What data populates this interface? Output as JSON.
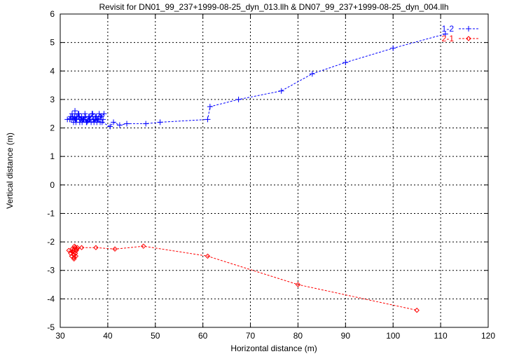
{
  "chart_data": {
    "type": "line",
    "title": "Revisit for DN01_99_237+1999-08-25_dyn_013.llh & DN07_99_237+1999-08-25_dyn_004.llh",
    "xlabel": "Horizontal distance (m)",
    "ylabel": "Vertical distance (m)",
    "xlim": [
      30,
      120
    ],
    "ylim": [
      -5,
      6
    ],
    "xticks": [
      30,
      40,
      50,
      60,
      70,
      80,
      90,
      100,
      110,
      120
    ],
    "yticks": [
      -5,
      -4,
      -3,
      -2,
      -1,
      0,
      1,
      2,
      3,
      4,
      5,
      6
    ],
    "grid": true,
    "legend_position": "top-right",
    "series": [
      {
        "name": "1-2",
        "color": "#0000ff",
        "marker": "plus",
        "x": [
          31.5,
          32.2,
          32.8,
          33.1,
          33.4,
          33.8,
          34.1,
          34.5,
          34.9,
          35.2,
          35.6,
          36.0,
          36.3,
          36.7,
          37.1,
          37.4,
          37.8,
          38.2,
          38.6,
          39.0,
          38.4,
          37.6,
          36.8,
          36.1,
          35.3,
          34.6,
          33.9,
          33.2,
          32.6,
          32.0,
          32.5,
          33.3,
          34.0,
          34.8,
          35.5,
          36.2,
          37.0,
          37.7,
          38.5,
          39.2,
          38.0,
          36.5,
          35.0,
          33.5,
          32.3,
          33.0,
          34.3,
          35.8,
          37.3,
          38.8,
          40.5,
          41.2,
          42.5,
          44.0,
          48.0,
          51.0,
          61.0,
          61.5,
          67.5,
          76.5,
          83.0,
          90.0,
          100.0,
          111.0
        ],
        "y": [
          2.3,
          2.4,
          2.2,
          2.6,
          2.3,
          2.5,
          2.2,
          2.4,
          2.3,
          2.5,
          2.2,
          2.4,
          2.3,
          2.5,
          2.2,
          2.4,
          2.3,
          2.5,
          2.4,
          2.3,
          2.2,
          2.4,
          2.5,
          2.3,
          2.4,
          2.2,
          2.5,
          2.3,
          2.4,
          2.3,
          2.5,
          2.2,
          2.4,
          2.3,
          2.2,
          2.4,
          2.3,
          2.2,
          2.4,
          2.5,
          2.3,
          2.2,
          2.3,
          2.4,
          2.3,
          2.35,
          2.3,
          2.25,
          2.3,
          2.2,
          2.05,
          2.2,
          2.1,
          2.15,
          2.15,
          2.2,
          2.3,
          2.75,
          3.0,
          3.3,
          3.9,
          4.3,
          4.8,
          5.3
        ]
      },
      {
        "name": "2-1",
        "color": "#ff0000",
        "marker": "diamond",
        "x": [
          31.8,
          32.2,
          32.5,
          32.8,
          33.1,
          33.3,
          32.9,
          32.6,
          32.4,
          32.7,
          33.0,
          33.4,
          33.6,
          33.2,
          32.9,
          33.5,
          34.5,
          37.5,
          41.5,
          47.5,
          61.0,
          80.0,
          105.0
        ],
        "y": [
          -2.3,
          -2.4,
          -2.25,
          -2.45,
          -2.2,
          -2.5,
          -2.6,
          -2.35,
          -2.5,
          -2.3,
          -2.15,
          -2.3,
          -2.2,
          -2.4,
          -2.55,
          -2.25,
          -2.2,
          -2.2,
          -2.25,
          -2.15,
          -2.5,
          -3.5,
          -4.4
        ]
      }
    ]
  }
}
